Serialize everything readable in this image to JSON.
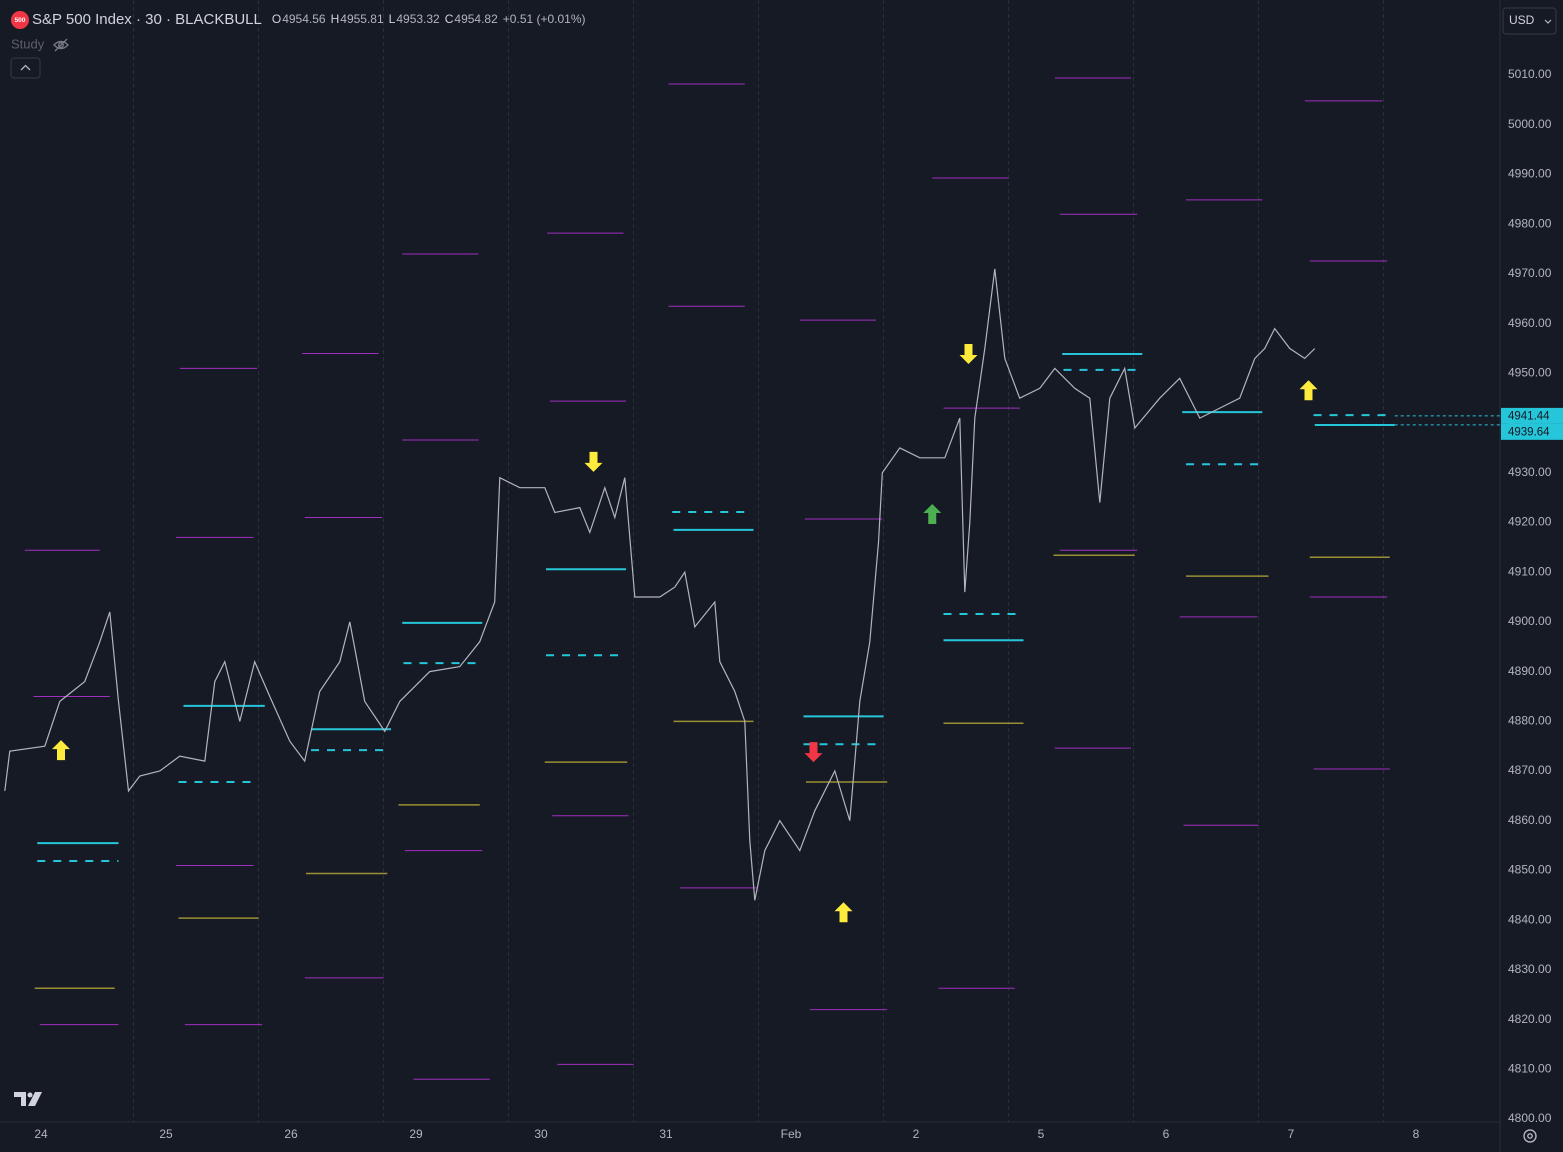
{
  "chart_data": {
    "type": "line",
    "badge": "500",
    "title": "S&P 500 Index · 30 · BLACKBULL",
    "ohlc": [
      {
        "label": "O",
        "value": 4954.56
      },
      {
        "label": "H",
        "value": 4955.81
      },
      {
        "label": "L",
        "value": 4953.32
      },
      {
        "label": "C",
        "value": 4954.82
      }
    ],
    "change": "+0.51 (+0.01%)",
    "study": "Study",
    "currency": "USD",
    "grid": false,
    "xlim": [
      -0.328,
      11.672
    ],
    "xticks": [
      {
        "value": 0,
        "label": "24"
      },
      {
        "value": 1,
        "label": "25"
      },
      {
        "value": 2,
        "label": "26"
      },
      {
        "value": 3,
        "label": "29"
      },
      {
        "value": 4,
        "label": "30"
      },
      {
        "value": 5,
        "label": "31"
      },
      {
        "value": 6,
        "label": "Feb"
      },
      {
        "value": 7,
        "label": "2"
      },
      {
        "value": 8,
        "label": "5"
      },
      {
        "value": 9,
        "label": "6"
      },
      {
        "value": 10,
        "label": "7"
      },
      {
        "value": 11,
        "label": "8"
      }
    ],
    "session_breaks": [
      0.74,
      1.74,
      2.74,
      3.74,
      4.74,
      5.74,
      6.74,
      7.74,
      8.74,
      9.74,
      10.74
    ],
    "ylim": [
      4799.4,
      5025.1
    ],
    "yticks": [
      {
        "value": 4800,
        "label": "4800.00"
      },
      {
        "value": 4810,
        "label": "4810.00"
      },
      {
        "value": 4820,
        "label": "4820.00"
      },
      {
        "value": 4830,
        "label": "4830.00"
      },
      {
        "value": 4840,
        "label": "4840.00"
      },
      {
        "value": 4850,
        "label": "4850.00"
      },
      {
        "value": 4860,
        "label": "4860.00"
      },
      {
        "value": 4870,
        "label": "4870.00"
      },
      {
        "value": 4880,
        "label": "4880.00"
      },
      {
        "value": 4890,
        "label": "4890.00"
      },
      {
        "value": 4900,
        "label": "4900.00"
      },
      {
        "value": 4910,
        "label": "4910.00"
      },
      {
        "value": 4920,
        "label": "4920.00"
      },
      {
        "value": 4930,
        "label": "4930.00"
      },
      {
        "value": 4940,
        "label": "4940.00"
      },
      {
        "value": 4950,
        "label": "4950.00"
      },
      {
        "value": 4960,
        "label": "4960.00"
      },
      {
        "value": 4970,
        "label": "4970.00"
      },
      {
        "value": 4980,
        "label": "4980.00"
      },
      {
        "value": 4990,
        "label": "4990.00"
      },
      {
        "value": 5000,
        "label": "5000.00"
      },
      {
        "value": 5010,
        "label": "5010.00"
      }
    ],
    "series": [
      {
        "color": "#b2b5be",
        "x": [
          -0.29,
          -0.25,
          0.03,
          0.15,
          0.35,
          0.47,
          0.55,
          0.62,
          0.7,
          0.79,
          0.95,
          1.11,
          1.31,
          1.39,
          1.47,
          1.59,
          1.71,
          1.83,
          1.99,
          2.11,
          2.23,
          2.39,
          2.47,
          2.59,
          2.75,
          2.87,
          3.11,
          3.35,
          3.51,
          3.63,
          3.67,
          3.83,
          4.03,
          4.11,
          4.31,
          4.39,
          4.51,
          4.59,
          4.67,
          4.75,
          4.95,
          5.07,
          5.15,
          5.23,
          5.39,
          5.43,
          5.55,
          5.63,
          5.67,
          5.71,
          5.79,
          5.91,
          6.07,
          6.19,
          6.35,
          6.47,
          6.55,
          6.63,
          6.7,
          6.73,
          6.87,
          7.03,
          7.23,
          7.35,
          7.39,
          7.43,
          7.47,
          7.55,
          7.63,
          7.71,
          7.83,
          7.99,
          8.11,
          8.27,
          8.39,
          8.47,
          8.55,
          8.67,
          8.75,
          8.95,
          9.11,
          9.27,
          9.43,
          9.59,
          9.71,
          9.79,
          9.87,
          9.99,
          10.11,
          10.19
        ],
        "values": [
          4866,
          4874,
          4875,
          4884,
          4888,
          4896,
          4902,
          4884,
          4866,
          4869,
          4870,
          4873,
          4872,
          4888,
          4892,
          4880,
          4892,
          4885,
          4876,
          4872,
          4886,
          4892,
          4900,
          4884,
          4878,
          4884,
          4890,
          4891,
          4896,
          4904,
          4929,
          4927,
          4927,
          4922,
          4923,
          4918,
          4927,
          4921,
          4929,
          4905,
          4905,
          4907,
          4910,
          4899,
          4904,
          4892,
          4886,
          4880,
          4856,
          4844,
          4854,
          4860,
          4854,
          4862,
          4870,
          4860,
          4884,
          4896,
          4916,
          4930,
          4935,
          4933,
          4933,
          4941,
          4906,
          4920,
          4941,
          4955,
          4971,
          4953,
          4945,
          4947,
          4951,
          4947,
          4945,
          4924,
          4945,
          4951,
          4939,
          4945,
          4949,
          4941,
          4943,
          4945,
          4953,
          4955,
          4959,
          4955,
          4953,
          4955
        ]
      }
    ],
    "levels": [
      {
        "color": "#a02fc0",
        "width": 1,
        "dashed": false,
        "segments": [
          [
            -0.13,
            0.47,
            4914.4
          ],
          [
            -0.06,
            0.55,
            4885
          ],
          [
            -0.01,
            0.62,
            4819
          ],
          [
            1.11,
            1.73,
            4951
          ],
          [
            1.08,
            1.7,
            4917
          ],
          [
            1.08,
            1.7,
            4851
          ],
          [
            1.15,
            1.77,
            4819
          ],
          [
            2.09,
            2.7,
            4954
          ],
          [
            2.11,
            2.73,
            4921
          ],
          [
            2.11,
            2.74,
            4828.4
          ],
          [
            2.89,
            3.5,
            4974
          ],
          [
            2.89,
            3.5,
            4936.6
          ],
          [
            2.91,
            3.53,
            4854
          ],
          [
            2.98,
            3.59,
            4808
          ],
          [
            4.05,
            4.66,
            4978.2
          ],
          [
            4.07,
            4.68,
            4944.4
          ],
          [
            4.09,
            4.7,
            4861
          ],
          [
            4.13,
            4.74,
            4811
          ],
          [
            5.02,
            5.63,
            5008.2
          ],
          [
            5.02,
            5.63,
            4963.5
          ],
          [
            5.11,
            5.73,
            4846.5
          ],
          [
            6.07,
            6.68,
            4960.7
          ],
          [
            6.11,
            6.73,
            4920.7
          ],
          [
            6.15,
            6.77,
            4822
          ],
          [
            7.13,
            7.74,
            4989.3
          ],
          [
            7.22,
            7.83,
            4943
          ],
          [
            7.18,
            7.79,
            4826.3
          ],
          [
            8.11,
            8.72,
            5009.4
          ],
          [
            8.15,
            8.77,
            4982
          ],
          [
            8.15,
            8.77,
            4914.4
          ],
          [
            8.11,
            8.72,
            4874.6
          ],
          [
            9.16,
            9.77,
            4984.9
          ],
          [
            9.11,
            9.73,
            4901
          ],
          [
            9.14,
            9.74,
            4859.1
          ],
          [
            10.11,
            10.73,
            5004.8
          ],
          [
            10.15,
            10.77,
            4972.6
          ],
          [
            10.15,
            10.77,
            4905
          ],
          [
            10.18,
            10.79,
            4870.4
          ]
        ]
      },
      {
        "color": "#9a8f33",
        "width": 1.5,
        "dashed": false,
        "segments": [
          [
            -0.05,
            0.59,
            4826.3
          ],
          [
            1.1,
            1.74,
            4840.4
          ],
          [
            2.12,
            2.77,
            4849.4
          ],
          [
            2.86,
            3.51,
            4863.2
          ],
          [
            4.03,
            4.69,
            4871.8
          ],
          [
            5.06,
            5.7,
            4880
          ],
          [
            6.12,
            6.77,
            4867.8
          ],
          [
            7.22,
            7.86,
            4879.6
          ],
          [
            8.1,
            8.75,
            4913.4
          ],
          [
            9.16,
            9.82,
            4909.2
          ],
          [
            10.15,
            10.79,
            4913
          ]
        ]
      },
      {
        "color": "#26c6da",
        "width": 2,
        "dashed": false,
        "segments": [
          [
            -0.03,
            0.62,
            4855.5
          ],
          [
            1.14,
            1.79,
            4883.1
          ],
          [
            2.16,
            2.8,
            4878.4
          ],
          [
            2.89,
            3.53,
            4899.8
          ],
          [
            4.04,
            4.68,
            4910.6
          ],
          [
            5.06,
            5.7,
            4918.5
          ],
          [
            6.1,
            6.74,
            4881
          ],
          [
            7.22,
            7.86,
            4896.3
          ],
          [
            8.17,
            8.81,
            4953.9
          ],
          [
            9.13,
            9.77,
            4942.2
          ],
          [
            10.19,
            10.83,
            4939.6
          ]
        ]
      },
      {
        "color": "#26c6da",
        "width": 2,
        "dashed": true,
        "segments": [
          [
            -0.03,
            0.62,
            4851.9
          ],
          [
            1.1,
            1.74,
            4867.8
          ],
          [
            2.16,
            2.8,
            4874.2
          ],
          [
            2.9,
            3.54,
            4891.7
          ],
          [
            4.04,
            4.68,
            4893.3
          ],
          [
            5.05,
            5.69,
            4922.1
          ],
          [
            6.1,
            6.74,
            4875.4
          ],
          [
            7.22,
            7.86,
            4901.6
          ],
          [
            8.18,
            8.82,
            4950.7
          ],
          [
            9.16,
            9.8,
            4931.7
          ],
          [
            10.18,
            10.82,
            4941.6
          ]
        ]
      }
    ],
    "price_labels": [
      {
        "value": 4941.44,
        "from": 10.83
      },
      {
        "value": 4939.64,
        "from": 10.83
      }
    ],
    "signals": [
      {
        "direction": "up",
        "color": "#ffeb3b",
        "x": 0.16,
        "value": 4874.2
      },
      {
        "direction": "down",
        "color": "#ffeb3b",
        "x": 4.42,
        "value": 4932.2
      },
      {
        "direction": "down",
        "color": "#f23645",
        "x": 6.18,
        "value": 4873.8
      },
      {
        "direction": "up",
        "color": "#ffeb3b",
        "x": 6.42,
        "value": 4841.6
      },
      {
        "direction": "up",
        "color": "#4caf50",
        "x": 7.13,
        "value": 4921.7
      },
      {
        "direction": "down",
        "color": "#ffeb3b",
        "x": 7.42,
        "value": 4953.9
      },
      {
        "direction": "up",
        "color": "#ffeb3b",
        "x": 10.14,
        "value": 4946.6
      }
    ]
  }
}
